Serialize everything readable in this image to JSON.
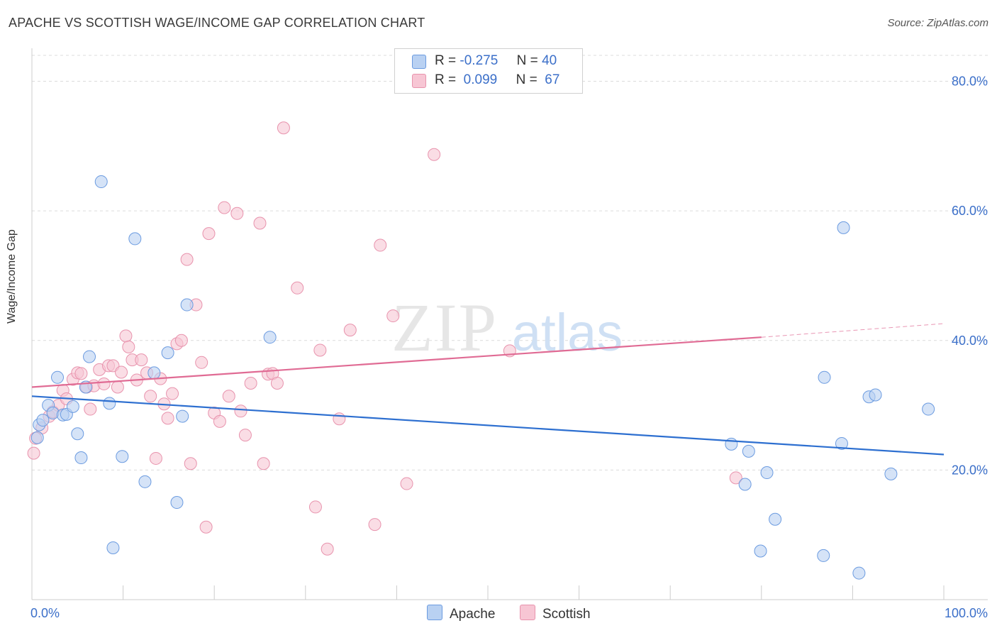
{
  "header": {
    "title": "APACHE VS SCOTTISH WAGE/INCOME GAP CORRELATION CHART",
    "source": "Source: ZipAtlas.com"
  },
  "watermark": {
    "zip": "ZIP",
    "atlas": "atlas"
  },
  "legend": {
    "rows": [
      {
        "r_label": "R =",
        "r_value": "-0.275",
        "n_label": "N =",
        "n_value": "40"
      },
      {
        "r_label": "R =",
        "r_value": "0.099",
        "n_label": "N =",
        "n_value": "67"
      }
    ]
  },
  "colors": {
    "apache_fill": "#b9d1f2",
    "apache_stroke": "#6b9be0",
    "apache_line": "#2d6fd0",
    "scottish_fill": "#f7c6d4",
    "scottish_stroke": "#e893ad",
    "scottish_line": "#e06b94",
    "tick_text": "#3b6fc9"
  },
  "chart_data": {
    "type": "scatter",
    "title": "APACHE VS SCOTTISH WAGE/INCOME GAP CORRELATION CHART",
    "xlabel": "",
    "ylabel": "Wage/Income Gap",
    "xlim": [
      0,
      100
    ],
    "ylim": [
      0,
      84
    ],
    "x_tick_labels": [
      "0.0%",
      "100.0%"
    ],
    "y_ticks": [
      20,
      40,
      60,
      80
    ],
    "y_tick_labels": [
      "20.0%",
      "40.0%",
      "60.0%",
      "80.0%"
    ],
    "grid": true,
    "series": [
      {
        "name": "Apache",
        "r": -0.275,
        "n": 40,
        "trend": {
          "x0": 0,
          "y0": 31.4,
          "x1": 100,
          "y1": 22.4
        },
        "points": [
          [
            0.6,
            25.0
          ],
          [
            0.8,
            27.0
          ],
          [
            1.2,
            27.7
          ],
          [
            1.8,
            30.0
          ],
          [
            2.3,
            28.8
          ],
          [
            2.8,
            34.3
          ],
          [
            3.4,
            28.5
          ],
          [
            3.8,
            28.6
          ],
          [
            4.5,
            29.8
          ],
          [
            5.0,
            25.6
          ],
          [
            5.4,
            21.9
          ],
          [
            5.9,
            32.8
          ],
          [
            6.3,
            37.5
          ],
          [
            7.6,
            64.5
          ],
          [
            8.5,
            30.3
          ],
          [
            8.9,
            8.0
          ],
          [
            9.9,
            22.1
          ],
          [
            11.3,
            55.7
          ],
          [
            12.4,
            18.2
          ],
          [
            13.4,
            35.0
          ],
          [
            14.9,
            38.1
          ],
          [
            15.9,
            15.0
          ],
          [
            16.5,
            28.3
          ],
          [
            17.0,
            45.5
          ],
          [
            26.1,
            40.5
          ],
          [
            76.7,
            24.0
          ],
          [
            78.2,
            17.8
          ],
          [
            78.6,
            22.9
          ],
          [
            79.9,
            7.5
          ],
          [
            80.6,
            19.6
          ],
          [
            81.5,
            12.4
          ],
          [
            86.8,
            6.8
          ],
          [
            86.9,
            34.3
          ],
          [
            88.8,
            24.1
          ],
          [
            89.0,
            57.4
          ],
          [
            90.7,
            4.1
          ],
          [
            91.8,
            31.3
          ],
          [
            92.5,
            31.6
          ],
          [
            94.2,
            19.4
          ],
          [
            98.3,
            29.4
          ]
        ]
      },
      {
        "name": "Scottish",
        "r": 0.099,
        "n": 67,
        "trend": {
          "x0": 0,
          "y0": 32.8,
          "x1": 80,
          "y1": 40.5
        },
        "trend_extension": {
          "x0": 80,
          "y0": 40.5,
          "x1": 100,
          "y1": 42.6
        },
        "points": [
          [
            0.2,
            22.6
          ],
          [
            0.4,
            24.9
          ],
          [
            1.1,
            26.5
          ],
          [
            1.9,
            28.3
          ],
          [
            2.3,
            29.0
          ],
          [
            2.9,
            30.0
          ],
          [
            3.4,
            32.3
          ],
          [
            3.8,
            31.0
          ],
          [
            4.5,
            34.0
          ],
          [
            5.0,
            35.0
          ],
          [
            5.4,
            34.9
          ],
          [
            6.0,
            32.8
          ],
          [
            6.4,
            29.4
          ],
          [
            6.8,
            33.0
          ],
          [
            7.4,
            35.5
          ],
          [
            7.9,
            33.3
          ],
          [
            8.4,
            36.1
          ],
          [
            8.9,
            36.1
          ],
          [
            9.4,
            32.8
          ],
          [
            9.8,
            35.1
          ],
          [
            10.3,
            40.7
          ],
          [
            10.6,
            39.0
          ],
          [
            11.0,
            37.0
          ],
          [
            11.5,
            33.9
          ],
          [
            12.0,
            37.0
          ],
          [
            12.6,
            35.0
          ],
          [
            13.0,
            31.4
          ],
          [
            13.6,
            21.8
          ],
          [
            14.1,
            34.1
          ],
          [
            14.5,
            30.2
          ],
          [
            14.9,
            28.0
          ],
          [
            15.4,
            31.8
          ],
          [
            15.9,
            39.5
          ],
          [
            16.4,
            40.0
          ],
          [
            17.0,
            52.5
          ],
          [
            17.4,
            21.0
          ],
          [
            18.0,
            45.5
          ],
          [
            18.6,
            36.6
          ],
          [
            19.1,
            11.2
          ],
          [
            19.4,
            56.5
          ],
          [
            20.0,
            28.8
          ],
          [
            20.6,
            27.5
          ],
          [
            21.1,
            60.5
          ],
          [
            21.6,
            31.4
          ],
          [
            22.5,
            59.6
          ],
          [
            22.9,
            29.1
          ],
          [
            23.4,
            25.4
          ],
          [
            24.0,
            33.4
          ],
          [
            25.0,
            58.1
          ],
          [
            25.4,
            21.0
          ],
          [
            25.9,
            34.8
          ],
          [
            26.4,
            34.9
          ],
          [
            26.9,
            33.4
          ],
          [
            27.6,
            72.8
          ],
          [
            29.1,
            48.1
          ],
          [
            31.1,
            14.3
          ],
          [
            31.6,
            38.5
          ],
          [
            32.4,
            7.8
          ],
          [
            33.7,
            27.9
          ],
          [
            34.9,
            41.6
          ],
          [
            37.6,
            11.6
          ],
          [
            38.2,
            54.7
          ],
          [
            39.6,
            43.8
          ],
          [
            41.1,
            17.9
          ],
          [
            44.1,
            68.7
          ],
          [
            52.4,
            38.4
          ],
          [
            77.2,
            18.8
          ]
        ]
      }
    ]
  },
  "bottom_legend": [
    {
      "label": "Apache"
    },
    {
      "label": "Scottish"
    }
  ]
}
